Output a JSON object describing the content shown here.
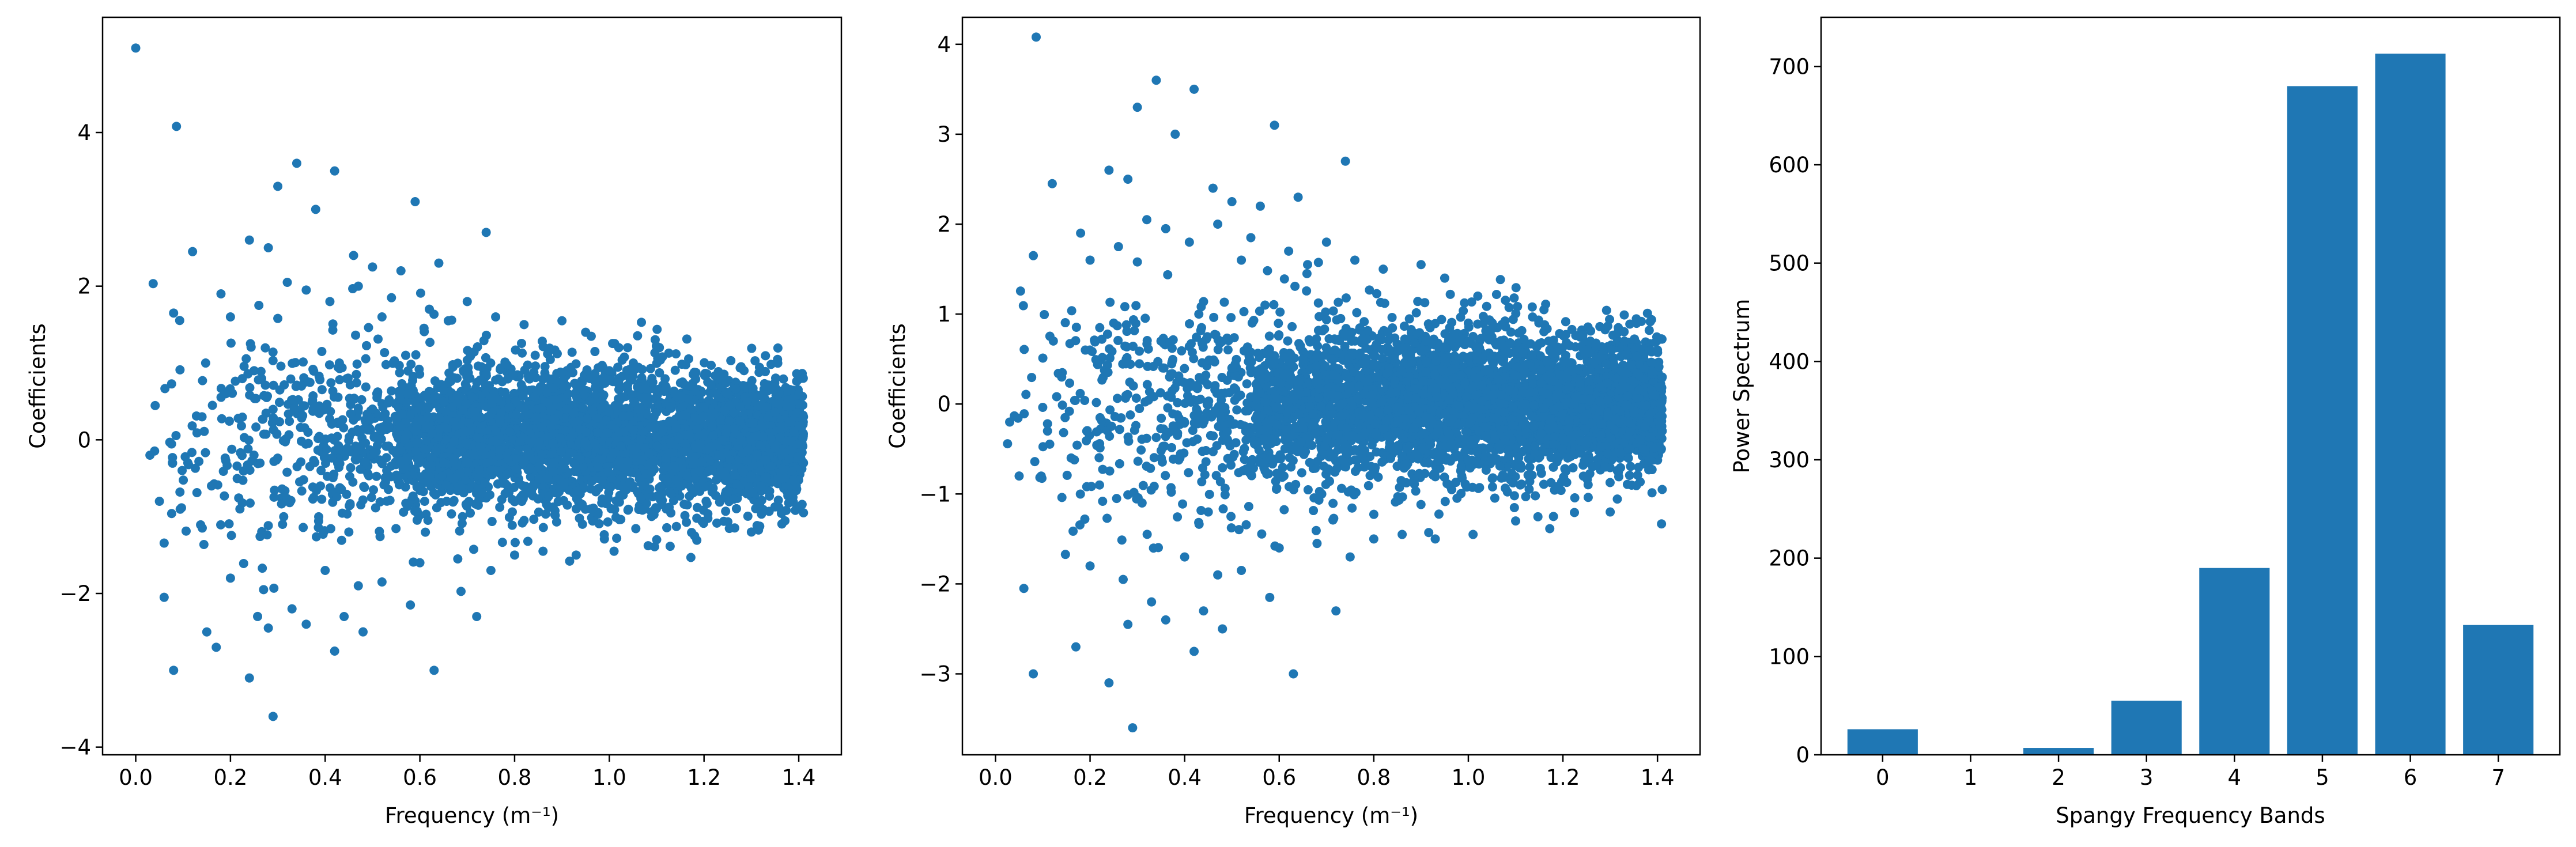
{
  "colors": {
    "series": "#1f77b4",
    "axes": "#000000",
    "background": "#ffffff"
  },
  "chart_data": [
    {
      "type": "scatter",
      "xlabel": "Frequency (m⁻¹)",
      "ylabel": "Coefficients",
      "xlim": [
        -0.07,
        1.49
      ],
      "ylim": [
        -4.1,
        5.5
      ],
      "xticks": [
        0.0,
        0.2,
        0.4,
        0.6,
        0.8,
        1.0,
        1.2,
        1.4
      ],
      "xtick_labels": [
        "0.0",
        "0.2",
        "0.4",
        "0.6",
        "0.8",
        "1.0",
        "1.2",
        "1.4"
      ],
      "yticks": [
        -4,
        -2,
        0,
        2,
        4
      ],
      "ytick_labels": [
        "−4",
        "−2",
        "0",
        "2",
        "4"
      ],
      "grid": false,
      "points": [
        [
          0.0,
          5.1
        ],
        [
          0.086,
          4.08
        ],
        [
          0.34,
          3.6
        ],
        [
          0.42,
          3.5
        ],
        [
          0.3,
          3.3
        ],
        [
          0.38,
          3.0
        ],
        [
          0.59,
          3.1
        ],
        [
          0.74,
          2.7
        ],
        [
          0.24,
          2.6
        ],
        [
          0.12,
          2.45
        ],
        [
          0.28,
          2.5
        ],
        [
          0.46,
          2.4
        ],
        [
          0.5,
          2.25
        ],
        [
          0.56,
          2.2
        ],
        [
          0.64,
          2.3
        ],
        [
          0.32,
          2.05
        ],
        [
          0.36,
          1.95
        ],
        [
          0.08,
          1.65
        ],
        [
          0.18,
          1.9
        ],
        [
          0.2,
          1.6
        ],
        [
          0.26,
          1.75
        ],
        [
          0.3,
          1.58
        ],
        [
          0.41,
          1.8
        ],
        [
          0.47,
          2.0
        ],
        [
          0.52,
          1.6
        ],
        [
          0.54,
          1.85
        ],
        [
          0.62,
          1.7
        ],
        [
          0.66,
          1.55
        ],
        [
          0.7,
          1.8
        ],
        [
          0.76,
          1.6
        ],
        [
          0.82,
          1.5
        ],
        [
          0.9,
          1.55
        ],
        [
          0.95,
          1.4
        ],
        [
          1.02,
          1.2
        ],
        [
          0.08,
          -3.0
        ],
        [
          0.24,
          -3.1
        ],
        [
          0.29,
          -3.6
        ],
        [
          0.42,
          -2.75
        ],
        [
          0.63,
          -3.0
        ],
        [
          0.72,
          -2.3
        ],
        [
          0.17,
          -2.7
        ],
        [
          0.36,
          -2.4
        ],
        [
          0.33,
          -2.2
        ],
        [
          0.48,
          -2.5
        ],
        [
          0.58,
          -2.15
        ],
        [
          0.06,
          -2.05
        ],
        [
          0.28,
          -2.45
        ],
        [
          0.44,
          -2.3
        ],
        [
          0.2,
          -1.8
        ],
        [
          0.27,
          -1.95
        ],
        [
          0.4,
          -1.7
        ],
        [
          0.47,
          -1.9
        ],
        [
          0.52,
          -1.85
        ],
        [
          0.6,
          -1.6
        ],
        [
          0.68,
          -1.55
        ],
        [
          0.75,
          -1.7
        ],
        [
          0.8,
          -1.5
        ],
        [
          0.86,
          -1.45
        ],
        [
          0.93,
          -1.5
        ],
        [
          1.01,
          -1.45
        ],
        [
          1.1,
          -1.3
        ],
        [
          1.18,
          -1.25
        ],
        [
          1.3,
          -1.2
        ],
        [
          1.41,
          -0.95
        ],
        [
          0.05,
          -0.8
        ],
        [
          0.03,
          -0.2
        ],
        [
          0.11,
          -0.3
        ],
        [
          0.14,
          0.3
        ],
        [
          0.16,
          -0.6
        ],
        [
          0.19,
          0.6
        ],
        [
          0.22,
          -0.9
        ],
        [
          0.25,
          0.9
        ],
        [
          0.31,
          -1.1
        ],
        [
          0.35,
          0.7
        ],
        [
          0.39,
          -0.6
        ],
        [
          0.43,
          1.0
        ],
        [
          0.45,
          -1.2
        ],
        [
          0.5,
          0.4
        ],
        [
          0.53,
          -0.4
        ],
        [
          0.57,
          1.1
        ],
        [
          0.61,
          -0.8
        ],
        [
          0.65,
          0.5
        ],
        [
          0.69,
          -1.0
        ],
        [
          0.73,
          0.95
        ],
        [
          0.78,
          -0.7
        ],
        [
          0.83,
          0.8
        ],
        [
          0.87,
          -0.5
        ],
        [
          0.91,
          0.7
        ],
        [
          0.96,
          -0.9
        ],
        [
          1.0,
          0.9
        ],
        [
          1.05,
          -0.6
        ],
        [
          1.09,
          0.8
        ],
        [
          1.13,
          -0.7
        ],
        [
          1.17,
          0.7
        ],
        [
          1.21,
          -0.6
        ],
        [
          1.25,
          0.6
        ],
        [
          1.29,
          -0.7
        ],
        [
          1.33,
          0.7
        ],
        [
          1.37,
          -0.5
        ],
        [
          1.4,
          0.6
        ],
        [
          1.41,
          -0.3
        ],
        [
          1.41,
          0.3
        ],
        [
          1.39,
          0.1
        ],
        [
          1.35,
          -0.1
        ]
      ],
      "dense_band_x": [
        0.55,
        1.41
      ],
      "dense_band_y_halfwidth": 1.0
    },
    {
      "type": "scatter",
      "xlabel": "Frequency (m⁻¹)",
      "ylabel": "Coefficients",
      "xlim": [
        -0.07,
        1.49
      ],
      "ylim": [
        -3.9,
        4.3
      ],
      "xticks": [
        0.0,
        0.2,
        0.4,
        0.6,
        0.8,
        1.0,
        1.2,
        1.4
      ],
      "xtick_labels": [
        "0.0",
        "0.2",
        "0.4",
        "0.6",
        "0.8",
        "1.0",
        "1.2",
        "1.4"
      ],
      "yticks": [
        -3,
        -2,
        -1,
        0,
        1,
        2,
        3,
        4
      ],
      "ytick_labels": [
        "−3",
        "−2",
        "−1",
        "0",
        "1",
        "2",
        "3",
        "4"
      ],
      "grid": false,
      "points": [
        [
          0.086,
          4.08
        ],
        [
          0.34,
          3.6
        ],
        [
          0.42,
          3.5
        ],
        [
          0.3,
          3.3
        ],
        [
          0.38,
          3.0
        ],
        [
          0.59,
          3.1
        ],
        [
          0.74,
          2.7
        ],
        [
          0.24,
          2.6
        ],
        [
          0.12,
          2.45
        ],
        [
          0.28,
          2.5
        ],
        [
          0.46,
          2.4
        ],
        [
          0.5,
          2.25
        ],
        [
          0.56,
          2.2
        ],
        [
          0.64,
          2.3
        ],
        [
          0.32,
          2.05
        ],
        [
          0.36,
          1.95
        ],
        [
          0.08,
          1.65
        ],
        [
          0.18,
          1.9
        ],
        [
          0.2,
          1.6
        ],
        [
          0.26,
          1.75
        ],
        [
          0.3,
          1.58
        ],
        [
          0.41,
          1.8
        ],
        [
          0.47,
          2.0
        ],
        [
          0.52,
          1.6
        ],
        [
          0.54,
          1.85
        ],
        [
          0.62,
          1.7
        ],
        [
          0.66,
          1.55
        ],
        [
          0.7,
          1.8
        ],
        [
          0.76,
          1.6
        ],
        [
          0.82,
          1.5
        ],
        [
          0.9,
          1.55
        ],
        [
          0.95,
          1.4
        ],
        [
          1.02,
          1.2
        ],
        [
          0.08,
          -3.0
        ],
        [
          0.24,
          -3.1
        ],
        [
          0.29,
          -3.6
        ],
        [
          0.42,
          -2.75
        ],
        [
          0.63,
          -3.0
        ],
        [
          0.72,
          -2.3
        ],
        [
          0.17,
          -2.7
        ],
        [
          0.36,
          -2.4
        ],
        [
          0.33,
          -2.2
        ],
        [
          0.48,
          -2.5
        ],
        [
          0.58,
          -2.15
        ],
        [
          0.06,
          -2.05
        ],
        [
          0.28,
          -2.45
        ],
        [
          0.44,
          -2.3
        ],
        [
          0.2,
          -1.8
        ],
        [
          0.27,
          -1.95
        ],
        [
          0.4,
          -1.7
        ],
        [
          0.47,
          -1.9
        ],
        [
          0.52,
          -1.85
        ],
        [
          0.6,
          -1.6
        ],
        [
          0.68,
          -1.55
        ],
        [
          0.75,
          -1.7
        ],
        [
          0.8,
          -1.5
        ],
        [
          0.86,
          -1.45
        ],
        [
          0.93,
          -1.5
        ],
        [
          1.01,
          -1.45
        ],
        [
          1.1,
          -1.3
        ],
        [
          1.18,
          -1.25
        ],
        [
          1.3,
          -1.2
        ],
        [
          1.41,
          -0.95
        ],
        [
          0.05,
          -0.8
        ],
        [
          0.03,
          -0.2
        ],
        [
          0.11,
          -0.3
        ],
        [
          0.14,
          0.3
        ],
        [
          0.16,
          -0.6
        ],
        [
          0.19,
          0.6
        ],
        [
          0.22,
          -0.9
        ],
        [
          0.25,
          0.9
        ],
        [
          0.31,
          -1.1
        ],
        [
          0.35,
          0.7
        ],
        [
          0.39,
          -0.6
        ],
        [
          0.43,
          1.0
        ],
        [
          0.45,
          -1.2
        ],
        [
          0.5,
          0.4
        ],
        [
          0.53,
          -0.4
        ],
        [
          0.57,
          1.1
        ],
        [
          0.61,
          -0.8
        ],
        [
          0.65,
          0.5
        ],
        [
          0.69,
          -1.0
        ],
        [
          0.73,
          0.95
        ],
        [
          0.78,
          -0.7
        ],
        [
          0.83,
          0.8
        ],
        [
          0.87,
          -0.5
        ],
        [
          0.91,
          0.7
        ],
        [
          0.96,
          -0.9
        ],
        [
          1.0,
          0.9
        ],
        [
          1.05,
          -0.6
        ],
        [
          1.09,
          0.8
        ],
        [
          1.13,
          -0.7
        ],
        [
          1.17,
          0.7
        ],
        [
          1.21,
          -0.6
        ],
        [
          1.25,
          0.6
        ],
        [
          1.29,
          -0.7
        ],
        [
          1.33,
          0.7
        ],
        [
          1.37,
          -0.5
        ],
        [
          1.4,
          0.6
        ],
        [
          1.41,
          -0.3
        ],
        [
          1.41,
          0.3
        ],
        [
          1.39,
          0.1
        ],
        [
          1.35,
          -0.1
        ]
      ],
      "dense_band_x": [
        0.55,
        1.41
      ],
      "dense_band_y_halfwidth": 0.9
    },
    {
      "type": "bar",
      "xlabel": "Spangy Frequency Bands",
      "ylabel": "Power Spectrum",
      "categories": [
        "0",
        "1",
        "2",
        "3",
        "4",
        "5",
        "6",
        "7"
      ],
      "values": [
        26,
        0.5,
        7,
        55,
        190,
        680,
        713,
        132
      ],
      "ylim": [
        0,
        750
      ],
      "yticks": [
        0,
        100,
        200,
        300,
        400,
        500,
        600,
        700
      ],
      "ytick_labels": [
        "0",
        "100",
        "200",
        "300",
        "400",
        "500",
        "600",
        "700"
      ],
      "grid": false
    }
  ]
}
